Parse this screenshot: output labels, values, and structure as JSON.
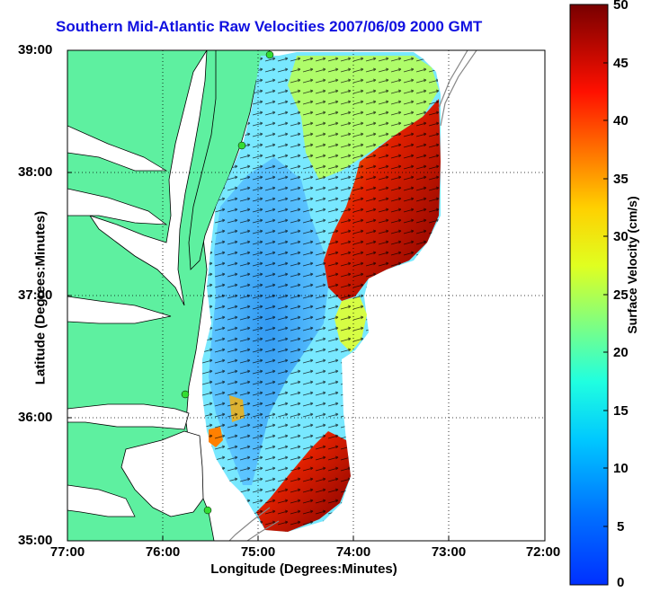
{
  "title": "Southern Mid-Atlantic Raw Velocities 2007/06/09 2000 GMT",
  "x_axis": {
    "label": "Longitude (Degrees:Minutes)",
    "ticks": [
      "77:00",
      "76:00",
      "75:00",
      "74:00",
      "73:00",
      "72:00"
    ]
  },
  "y_axis": {
    "label": "Latitude (Degrees:Minutes)",
    "ticks": [
      "39:00",
      "38:00",
      "37:00",
      "36:00",
      "35:00"
    ]
  },
  "colorbar": {
    "label": "Surface Velocity (cm/s)",
    "ticks": [
      "50",
      "45",
      "40",
      "35",
      "30",
      "25",
      "20",
      "15",
      "10",
      "5",
      "0"
    ],
    "range": [
      0,
      50
    ],
    "colormap": "jet"
  },
  "colors": {
    "title": "#1010e0",
    "land": "#5ef0a0",
    "water": "#ffffff",
    "station_marker": "#33dd33"
  },
  "map": {
    "lon_range": [
      -77,
      -72
    ],
    "lat_range": [
      35,
      39
    ],
    "grid": "dotted",
    "stations": [
      "station-1",
      "station-2",
      "station-3",
      "station-4"
    ]
  }
}
